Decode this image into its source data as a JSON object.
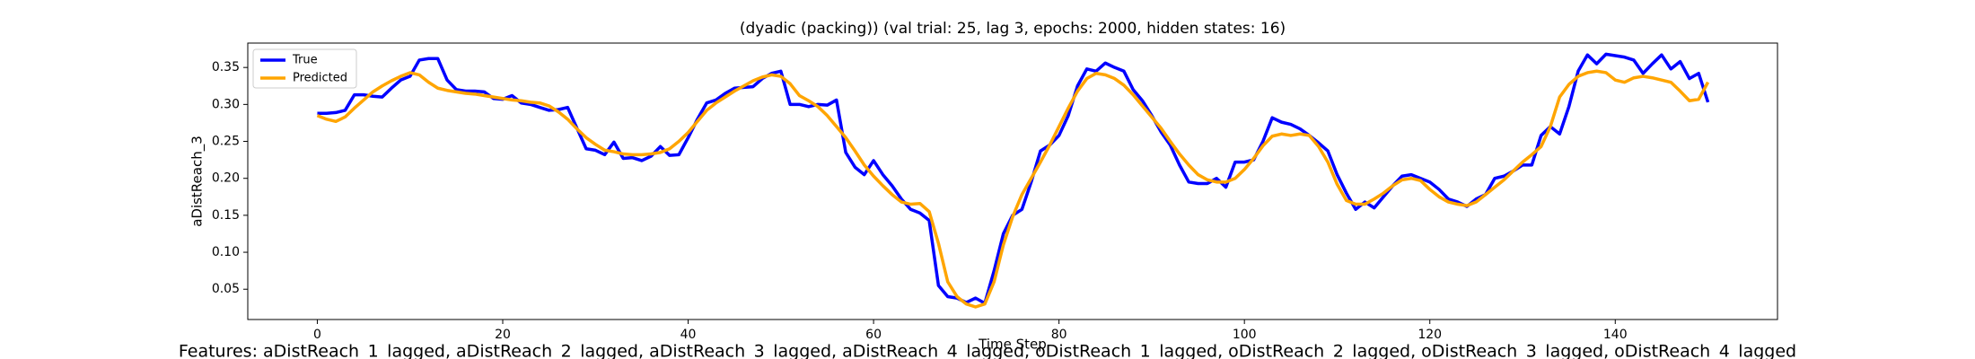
{
  "chart_data": {
    "type": "line",
    "title": "(dyadic (packing)) (val trial: 25, lag 3, epochs: 2000, hidden states: 16)",
    "xlabel": "Time Step",
    "ylabel": "aDistReach_3",
    "caption": "Features: aDistReach_1_lagged, aDistReach_2_lagged, aDistReach_3_lagged, aDistReach_4_lagged, oDistReach_1_lagged, oDistReach_2_lagged, oDistReach_3_lagged, oDistReach_4_lagged",
    "legend": "upper left",
    "x": [
      0,
      1,
      2,
      3,
      4,
      5,
      6,
      7,
      8,
      9,
      10,
      11,
      12,
      13,
      14,
      15,
      16,
      17,
      18,
      19,
      20,
      21,
      22,
      23,
      24,
      25,
      26,
      27,
      28,
      29,
      30,
      31,
      32,
      33,
      34,
      35,
      36,
      37,
      38,
      39,
      40,
      41,
      42,
      43,
      44,
      45,
      46,
      47,
      48,
      49,
      50,
      51,
      52,
      53,
      54,
      55,
      56,
      57,
      58,
      59,
      60,
      61,
      62,
      63,
      64,
      65,
      66,
      67,
      68,
      69,
      70,
      71,
      72,
      73,
      74,
      75,
      76,
      77,
      78,
      79,
      80,
      81,
      82,
      83,
      84,
      85,
      86,
      87,
      88,
      89,
      90,
      91,
      92,
      93,
      94,
      95,
      96,
      97,
      98,
      99,
      100,
      101,
      102,
      103,
      104,
      105,
      106,
      107,
      108,
      109,
      110,
      111,
      112,
      113,
      114,
      115,
      116,
      117,
      118,
      119,
      120,
      121,
      122,
      123,
      124,
      125,
      126,
      127,
      128,
      129,
      130,
      131,
      132,
      133,
      134,
      135,
      136,
      137,
      138,
      139,
      140,
      141,
      142,
      143,
      144,
      145,
      146,
      147,
      148,
      149,
      150
    ],
    "series": [
      {
        "name": "True",
        "color": "#0000ff",
        "values": [
          0.288,
          0.288,
          0.289,
          0.292,
          0.313,
          0.313,
          0.311,
          0.31,
          0.322,
          0.333,
          0.338,
          0.36,
          0.362,
          0.362,
          0.333,
          0.32,
          0.318,
          0.318,
          0.317,
          0.308,
          0.307,
          0.312,
          0.302,
          0.3,
          0.296,
          0.292,
          0.293,
          0.296,
          0.268,
          0.24,
          0.238,
          0.232,
          0.249,
          0.227,
          0.228,
          0.224,
          0.23,
          0.243,
          0.231,
          0.232,
          0.255,
          0.28,
          0.302,
          0.306,
          0.315,
          0.322,
          0.323,
          0.324,
          0.335,
          0.342,
          0.345,
          0.3,
          0.3,
          0.297,
          0.3,
          0.299,
          0.306,
          0.235,
          0.215,
          0.205,
          0.224,
          0.205,
          0.19,
          0.172,
          0.158,
          0.153,
          0.143,
          0.055,
          0.04,
          0.038,
          0.032,
          0.038,
          0.031,
          0.075,
          0.125,
          0.15,
          0.158,
          0.195,
          0.237,
          0.245,
          0.258,
          0.285,
          0.325,
          0.348,
          0.345,
          0.356,
          0.35,
          0.345,
          0.32,
          0.305,
          0.285,
          0.263,
          0.245,
          0.218,
          0.195,
          0.193,
          0.193,
          0.2,
          0.188,
          0.222,
          0.222,
          0.225,
          0.25,
          0.282,
          0.276,
          0.273,
          0.267,
          0.258,
          0.248,
          0.237,
          0.205,
          0.18,
          0.158,
          0.168,
          0.16,
          0.175,
          0.19,
          0.203,
          0.205,
          0.2,
          0.195,
          0.185,
          0.172,
          0.168,
          0.162,
          0.172,
          0.178,
          0.2,
          0.203,
          0.21,
          0.218,
          0.218,
          0.258,
          0.27,
          0.26,
          0.297,
          0.345,
          0.367,
          0.355,
          0.368,
          0.366,
          0.364,
          0.36,
          0.342,
          0.355,
          0.367,
          0.348,
          0.358,
          0.335,
          0.342,
          0.303
        ]
      },
      {
        "name": "Predicted",
        "color": "#ffa500",
        "values": [
          0.285,
          0.28,
          0.277,
          0.283,
          0.295,
          0.306,
          0.317,
          0.325,
          0.332,
          0.338,
          0.343,
          0.34,
          0.33,
          0.322,
          0.319,
          0.317,
          0.315,
          0.314,
          0.312,
          0.31,
          0.308,
          0.306,
          0.305,
          0.303,
          0.302,
          0.298,
          0.29,
          0.28,
          0.267,
          0.255,
          0.246,
          0.238,
          0.236,
          0.233,
          0.232,
          0.232,
          0.233,
          0.235,
          0.24,
          0.25,
          0.262,
          0.277,
          0.292,
          0.302,
          0.31,
          0.318,
          0.325,
          0.332,
          0.337,
          0.34,
          0.338,
          0.328,
          0.312,
          0.305,
          0.297,
          0.285,
          0.27,
          0.255,
          0.237,
          0.218,
          0.203,
          0.19,
          0.178,
          0.168,
          0.165,
          0.166,
          0.155,
          0.112,
          0.06,
          0.04,
          0.03,
          0.026,
          0.03,
          0.06,
          0.11,
          0.148,
          0.178,
          0.2,
          0.222,
          0.245,
          0.27,
          0.295,
          0.318,
          0.335,
          0.342,
          0.34,
          0.335,
          0.326,
          0.313,
          0.298,
          0.283,
          0.268,
          0.25,
          0.233,
          0.218,
          0.205,
          0.198,
          0.195,
          0.195,
          0.2,
          0.212,
          0.227,
          0.244,
          0.257,
          0.26,
          0.258,
          0.26,
          0.258,
          0.243,
          0.222,
          0.192,
          0.17,
          0.165,
          0.165,
          0.172,
          0.18,
          0.19,
          0.198,
          0.2,
          0.197,
          0.185,
          0.175,
          0.168,
          0.165,
          0.163,
          0.168,
          0.178,
          0.188,
          0.198,
          0.21,
          0.222,
          0.232,
          0.243,
          0.27,
          0.31,
          0.327,
          0.338,
          0.343,
          0.345,
          0.343,
          0.333,
          0.33,
          0.336,
          0.338,
          0.336,
          0.333,
          0.33,
          0.318,
          0.305,
          0.307,
          0.33
        ]
      }
    ],
    "xlim": [
      -7.5,
      157.5
    ],
    "xticks": [
      0,
      20,
      40,
      60,
      80,
      100,
      120,
      140
    ],
    "ylim": [
      0.009,
      0.383
    ],
    "yticks": [
      0.05,
      {
        "value": 0.1,
        "label": "0.10"
      },
      0.15,
      {
        "value": 0.2,
        "label": "0.20"
      },
      0.25,
      {
        "value": 0.3,
        "label": "0.30"
      },
      0.35
    ]
  }
}
